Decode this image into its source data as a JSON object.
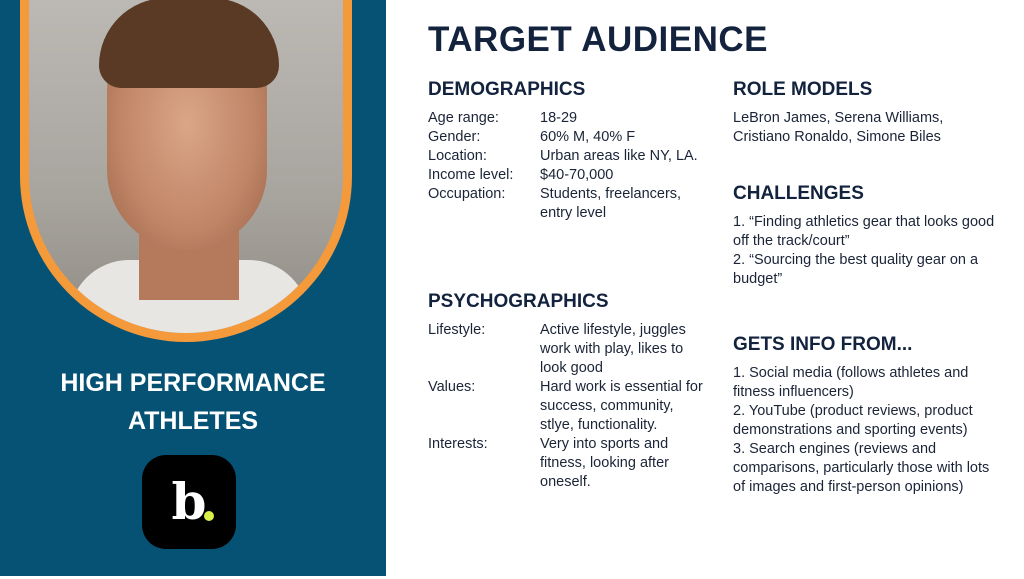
{
  "persona": {
    "name_line1": "HIGH PERFORMANCE",
    "name_line2": "ATHLETES",
    "logo_text": "b.",
    "brand_dot_color": "#d9ef4a",
    "panel_color": "#065274",
    "frame_color": "#f49a3b"
  },
  "title": "TARGET AUDIENCE",
  "demographics": {
    "heading": "DEMOGRAPHICS",
    "rows": [
      {
        "k": "Age range:",
        "v": "18-29"
      },
      {
        "k": "Gender:",
        "v": "60% M, 40% F"
      },
      {
        "k": "Location:",
        "v": "Urban areas like NY, LA."
      },
      {
        "k": "Income level:",
        "v": "$40-70,000"
      },
      {
        "k": "Occupation:",
        "v": "Students, freelancers, entry level"
      }
    ]
  },
  "psychographics": {
    "heading": "PSYCHOGRAPHICS",
    "rows": [
      {
        "k": "Lifestyle:",
        "v": "Active lifestyle, juggles work with play, likes to look good"
      },
      {
        "k": "Values:",
        "v": "Hard work is essential for success, community, stlye, functionality."
      },
      {
        "k": "Interests:",
        "v": "Very into sports and fitness, looking after oneself."
      }
    ]
  },
  "role_models": {
    "heading": "ROLE MODELS",
    "text": "LeBron James, Serena Williams, Cristiano Ronaldo, Simone Biles"
  },
  "challenges": {
    "heading": "CHALLENGES",
    "items": [
      "1. “Finding athletics gear that looks good off the track/court”",
      "2. “Sourcing the best quality gear on a budget”"
    ]
  },
  "info": {
    "heading": "GETS INFO FROM...",
    "items": [
      "1. Social media (follows athletes and fitness influencers)",
      "2. YouTube (product reviews, product demonstrations and sporting events)",
      "3. Search engines (reviews and comparisons, particularly those with lots of images and first-person opinions)"
    ]
  }
}
